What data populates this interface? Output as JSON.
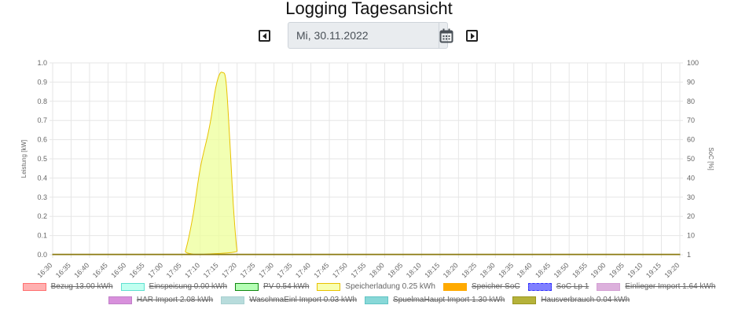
{
  "page": {
    "title": "Logging Tagesansicht",
    "date_value": "Mi, 30.11.2022",
    "prev_icon": "caret-left-square-icon",
    "next_icon": "caret-right-square-icon",
    "calendar_icon": "calendar-icon"
  },
  "chart_data": {
    "type": "area",
    "x": [
      "16:30",
      "16:35",
      "16:40",
      "16:45",
      "16:50",
      "16:55",
      "17:00",
      "17:05",
      "17:10",
      "17:15",
      "17:20",
      "17:25",
      "17:30",
      "17:35",
      "17:40",
      "17:45",
      "17:50",
      "17:55",
      "18:00",
      "18:05",
      "18:10",
      "18:15",
      "18:20",
      "18:25",
      "18:30",
      "18:35",
      "18:40",
      "18:45",
      "18:50",
      "18:55",
      "19:00",
      "19:05",
      "19:10",
      "19:15",
      "19:20"
    ],
    "y_left": {
      "label": "Leistung [kW]",
      "range": [
        0,
        1
      ],
      "ticks": [
        "0.0",
        "0.1",
        "0.2",
        "0.3",
        "0.4",
        "0.5",
        "0.6",
        "0.7",
        "0.8",
        "0.9",
        "1.0"
      ]
    },
    "y_right": {
      "label": "SoC [%]",
      "range": [
        0,
        100
      ],
      "ticks": [
        "1",
        "10",
        "20",
        "30",
        "40",
        "50",
        "60",
        "70",
        "80",
        "90",
        "100"
      ]
    },
    "grid": true,
    "series": [
      {
        "name": "Speicherladung 0.25 kWh",
        "color": "#e8c200",
        "fill": "#eeff99",
        "points": [
          [
            "16:30",
            0
          ],
          [
            "17:05",
            0
          ],
          [
            "17:06",
            0.02
          ],
          [
            "17:08",
            0.2
          ],
          [
            "17:10",
            0.45
          ],
          [
            "17:12",
            0.62
          ],
          [
            "17:13",
            0.72
          ],
          [
            "17:14",
            0.85
          ],
          [
            "17:15",
            0.93
          ],
          [
            "17:16",
            0.95
          ],
          [
            "17:17",
            0.9
          ],
          [
            "17:18",
            0.6
          ],
          [
            "17:19",
            0.25
          ],
          [
            "17:20",
            0.02
          ],
          [
            "17:21",
            0
          ],
          [
            "19:20",
            0
          ]
        ]
      },
      {
        "name": "Hausverbrauch 0.04 kWh",
        "color": "#8b7a10",
        "fill": "#b5b23a",
        "points": [
          [
            "16:30",
            0.003
          ],
          [
            "19:20",
            0.003
          ]
        ]
      }
    ],
    "legend": {
      "placement": "bottom",
      "items": [
        {
          "label": "Bezug 13.00 kWh",
          "fill": "#ffb0b0",
          "stroke": "#ff7070",
          "hidden": true
        },
        {
          "label": "Einspeisung 0.00 kWh",
          "fill": "#c0fff0",
          "stroke": "#60e0d0",
          "hidden": true
        },
        {
          "label": "PV 0.54 kWh",
          "fill": "#b5ffb5",
          "stroke": "#118811",
          "hidden": true
        },
        {
          "label": "Speicherladung 0.25 kWh",
          "fill": "#f8ffb0",
          "stroke": "#e8c200",
          "hidden": false
        },
        {
          "label": "Speicher SoC",
          "fill": "#ffaa00",
          "stroke": "#ffaa00",
          "hidden": true,
          "dashed": true
        },
        {
          "label": "SoC Lp 1",
          "fill": "#8080ff",
          "stroke": "#3030ff",
          "hidden": true,
          "dashed": true
        },
        {
          "label": "Einlieger Import 1.64 kWh",
          "fill": "#dcb0dc",
          "stroke": "#d4a0d4",
          "hidden": true
        },
        {
          "label": "HAR Import 2.08 kWh",
          "fill": "#d890dc",
          "stroke": "#c080c8",
          "hidden": true
        },
        {
          "label": "WaschmaEinl Import 0.03 kWh",
          "fill": "#b8dcdc",
          "stroke": "#a8d0d0",
          "hidden": true
        },
        {
          "label": "SpuelmaHaupt Import 1.30 kWh",
          "fill": "#88d8d8",
          "stroke": "#60c4c4",
          "hidden": true
        },
        {
          "label": "Hausverbrauch 0.04 kWh",
          "fill": "#b5b23a",
          "stroke": "#9a9620",
          "hidden": true
        }
      ]
    }
  }
}
